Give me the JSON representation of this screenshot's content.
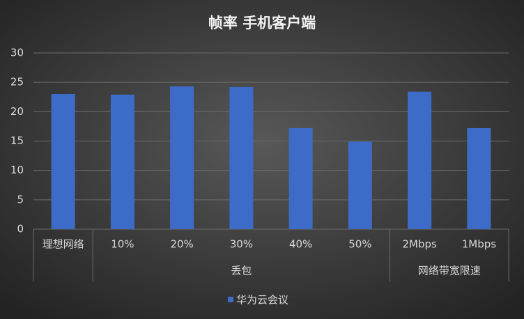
{
  "chart_data": {
    "type": "bar",
    "title": "帧率 手机客户端",
    "categories": [
      "理想网络",
      "10%",
      "20%",
      "30%",
      "40%",
      "50%",
      "2Mbps",
      "1Mbps"
    ],
    "groups": [
      {
        "label": null,
        "count": 1
      },
      {
        "label": "丢包",
        "count": 5
      },
      {
        "label": "网络带宽限速",
        "count": 2
      }
    ],
    "series": [
      {
        "name": "华为云会议",
        "color": "#3d6cc8",
        "values": [
          23.0,
          22.9,
          24.3,
          24.2,
          17.2,
          14.9,
          23.4,
          17.2
        ]
      }
    ],
    "ylim": [
      0,
      30
    ],
    "yticks": [
      0,
      5,
      10,
      15,
      20,
      25,
      30
    ],
    "grid": true,
    "legend": "bottom"
  }
}
